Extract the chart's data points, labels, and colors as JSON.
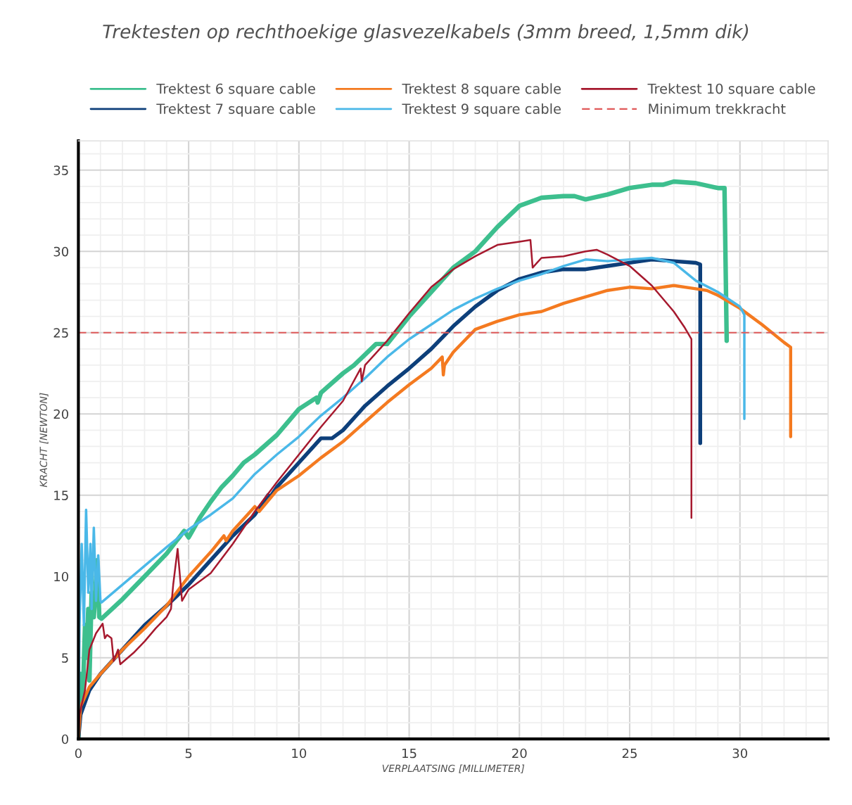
{
  "chart_data": {
    "type": "line",
    "title": "Trektesten op rechthoekige glasvezelkabels (3mm breed, 1,5mm dik)",
    "xlabel": "VERPLAATSING [MILLIMETER]",
    "ylabel": "KRACHT [NEWTON]",
    "xlim": [
      0,
      34
    ],
    "ylim": [
      0,
      36.8
    ],
    "xticks": [
      0,
      5,
      10,
      15,
      20,
      25,
      30
    ],
    "yticks": [
      0,
      5,
      10,
      15,
      20,
      25,
      30,
      35
    ],
    "grid": true,
    "legend": "top",
    "line_style": "solid",
    "marker": "none",
    "series": [
      {
        "name": "Trektest 6 square cable",
        "color": "#3dbf8e",
        "x": [
          0,
          0.1,
          0.2,
          0.3,
          0.35,
          0.45,
          0.5,
          0.6,
          0.7,
          0.85,
          0.95,
          1.05,
          2,
          3,
          4,
          4.8,
          5,
          5.5,
          6,
          6.5,
          7,
          7.5,
          8,
          9,
          10,
          10.8,
          10.85,
          11,
          12,
          12.5,
          13.5,
          14,
          15,
          16,
          17,
          18,
          19,
          20,
          21,
          22,
          22.5,
          23,
          24,
          25,
          26,
          26.5,
          27,
          28,
          29,
          29.3,
          29.4
        ],
        "values": [
          0,
          4,
          2.5,
          7,
          5,
          8,
          3.6,
          9,
          7.5,
          11,
          7.5,
          7.4,
          8.6,
          10,
          11.4,
          12.8,
          12.4,
          13.6,
          14.6,
          15.5,
          16.2,
          17,
          17.5,
          18.7,
          20.3,
          21,
          20.7,
          21.3,
          22.5,
          23,
          24.3,
          24.3,
          26,
          27.5,
          29,
          30,
          31.5,
          32.8,
          33.3,
          33.4,
          33.4,
          33.2,
          33.5,
          33.9,
          34.1,
          34.1,
          34.3,
          34.2,
          33.9,
          33.9,
          24.5
        ]
      },
      {
        "name": "Trektest 7 square cable",
        "color": "#0d3f7a",
        "x": [
          0,
          0.1,
          0.5,
          1,
          2,
          3,
          4,
          5,
          6,
          7,
          8,
          8.6,
          8.7,
          9,
          10,
          11,
          11.5,
          12,
          13,
          14,
          15,
          16,
          17,
          18,
          19,
          20,
          21,
          22,
          23,
          24,
          25,
          26,
          27,
          28,
          28.2,
          28.2
        ],
        "values": [
          0,
          1.5,
          3,
          4,
          5.5,
          7,
          8.2,
          9.5,
          11,
          12.5,
          13.8,
          15,
          14.9,
          15.5,
          17,
          18.5,
          18.5,
          19,
          20.5,
          21.7,
          22.8,
          24,
          25.4,
          26.6,
          27.6,
          28.3,
          28.7,
          28.9,
          28.9,
          29.1,
          29.3,
          29.5,
          29.4,
          29.3,
          29.2,
          18.2
        ]
      },
      {
        "name": "Trektest 8 square cable",
        "color": "#f47a20",
        "x": [
          0,
          0.1,
          0.5,
          1,
          2,
          3,
          4,
          5,
          6,
          6.6,
          6.7,
          7,
          8,
          8.2,
          9,
          10,
          11,
          12,
          13,
          14,
          15,
          16,
          16.5,
          16.55,
          16.6,
          17,
          18,
          19,
          20,
          21,
          22,
          23,
          24,
          25,
          26,
          27,
          28,
          28.5,
          29,
          30,
          31,
          32,
          32.3,
          32.3
        ],
        "values": [
          0,
          2,
          3.2,
          4,
          5.5,
          6.8,
          8.2,
          10,
          11.5,
          12.5,
          12.2,
          12.8,
          14.3,
          14,
          15.3,
          16.2,
          17.3,
          18.3,
          19.5,
          20.7,
          21.8,
          22.8,
          23.5,
          22.4,
          23,
          23.8,
          25.2,
          25.7,
          26.1,
          26.3,
          26.8,
          27.2,
          27.6,
          27.8,
          27.7,
          27.9,
          27.7,
          27.6,
          27.3,
          26.5,
          25.5,
          24.4,
          24.1,
          18.6
        ]
      },
      {
        "name": "Trektest 9 square cable",
        "color": "#4ab8e8",
        "x": [
          0,
          0.05,
          0.15,
          0.25,
          0.35,
          0.45,
          0.55,
          0.6,
          0.7,
          0.8,
          0.9,
          1.0,
          1.05,
          4,
          5,
          6,
          7,
          8,
          9,
          10,
          11,
          12,
          13,
          14,
          15,
          16,
          17,
          18,
          19,
          20,
          21,
          22,
          23,
          24,
          25,
          26,
          27,
          28,
          29,
          30,
          30.2,
          30.2
        ],
        "values": [
          0,
          7,
          12,
          7,
          14.1,
          9,
          12,
          8,
          13,
          8.5,
          11.3,
          8.5,
          8.4,
          11.8,
          12.9,
          13.8,
          14.8,
          16.3,
          17.5,
          18.6,
          19.9,
          21,
          22.2,
          23.5,
          24.6,
          25.5,
          26.4,
          27.1,
          27.7,
          28.2,
          28.6,
          29.1,
          29.5,
          29.4,
          29.5,
          29.6,
          29.3,
          28.2,
          27.5,
          26.6,
          26.1,
          19.7
        ]
      },
      {
        "name": "Trektest 10 square cable",
        "color": "#a6192e",
        "x": [
          0,
          0.05,
          0.3,
          0.5,
          0.8,
          1.1,
          1.2,
          1.3,
          1.5,
          1.6,
          1.8,
          1.9,
          2.5,
          3,
          3.5,
          4,
          4.2,
          4.3,
          4.5,
          4.7,
          5,
          6,
          7,
          8,
          9,
          10,
          11,
          12,
          12.8,
          12.85,
          13,
          14,
          15,
          16,
          17,
          18,
          19,
          20,
          20.5,
          20.6,
          21,
          22,
          23,
          23.5,
          24,
          25,
          26,
          27,
          27.5,
          27.8,
          27.8
        ],
        "values": [
          0,
          1.5,
          3,
          5.5,
          6.5,
          7.1,
          6.2,
          6.4,
          6.2,
          4.8,
          5.5,
          4.6,
          5.3,
          6,
          6.8,
          7.5,
          8,
          9.5,
          11.7,
          8.5,
          9.2,
          10.2,
          12,
          14,
          15.8,
          17.5,
          19.2,
          20.8,
          22.8,
          22,
          23,
          24.5,
          26.2,
          27.8,
          28.9,
          29.7,
          30.4,
          30.6,
          30.7,
          29,
          29.6,
          29.7,
          30,
          30.1,
          29.8,
          29.1,
          27.9,
          26.3,
          25.3,
          24.6,
          13.6
        ]
      }
    ],
    "ref_lines": [
      {
        "axis": "y",
        "value": 25,
        "label": "Minimum trekkracht",
        "color": "#e05a5a",
        "line_style": "dashed"
      }
    ]
  }
}
